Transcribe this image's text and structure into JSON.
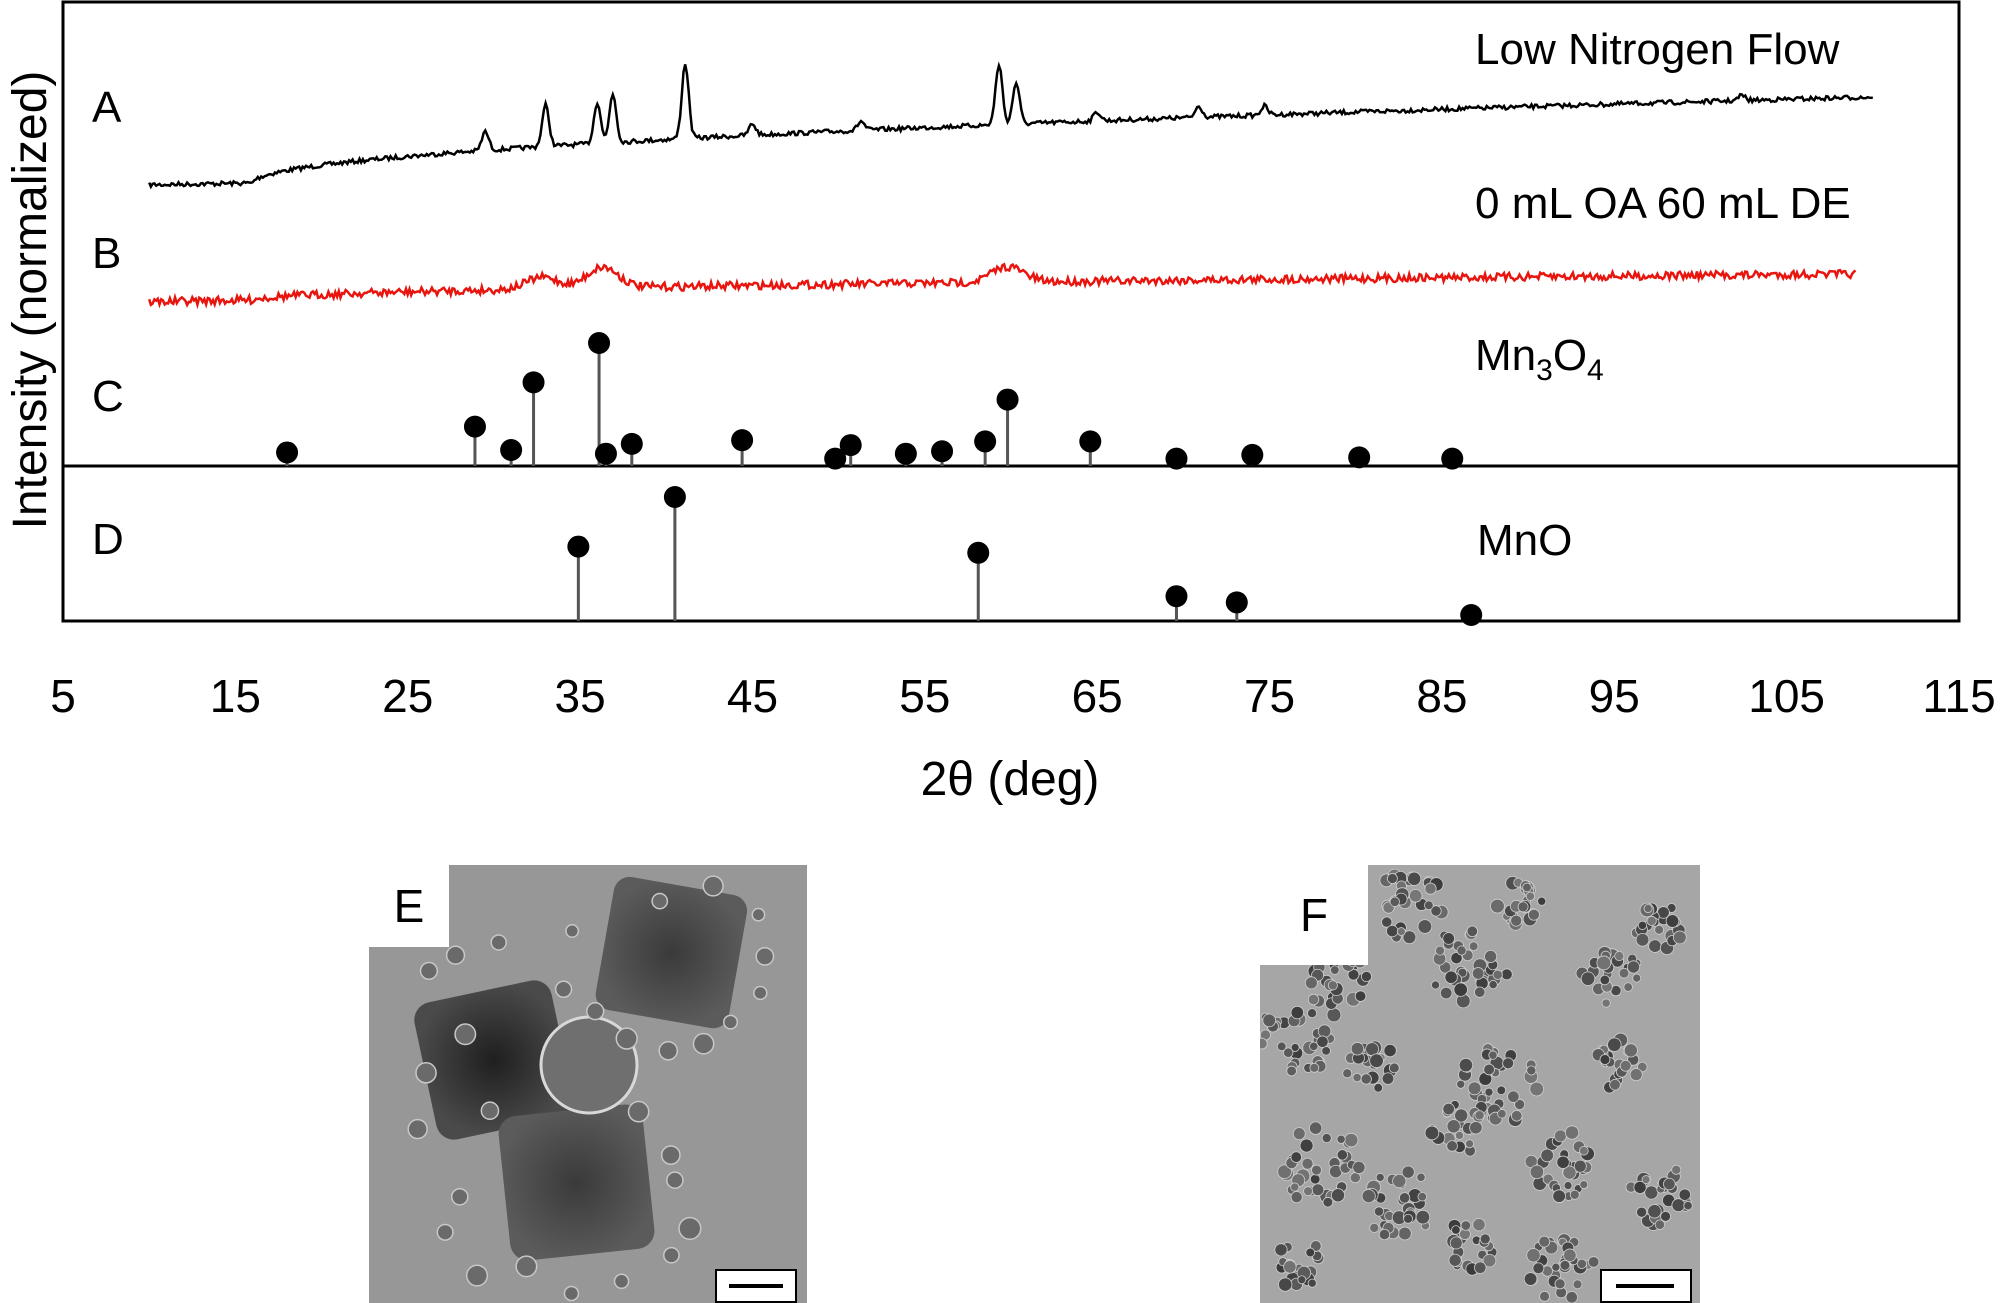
{
  "chart_data": {
    "type": "line",
    "x_label": "2θ (deg)",
    "y_label": "Intensity (normalized)",
    "x_range": [
      5,
      115
    ],
    "x_ticks": [
      5,
      15,
      25,
      35,
      45,
      55,
      65,
      75,
      85,
      95,
      105,
      115
    ],
    "y_ticks": "none",
    "grid": false,
    "series": [
      {
        "panel": "A",
        "name": "Low Nitrogen Flow",
        "style": "measured-xrd",
        "color": "#000000",
        "x_start": 10,
        "x_end": 110,
        "peaks": [
          {
            "x": 29.5,
            "rel": 0.25
          },
          {
            "x": 33.0,
            "rel": 0.55
          },
          {
            "x": 36.0,
            "rel": 0.55
          },
          {
            "x": 36.9,
            "rel": 0.65
          },
          {
            "x": 41.1,
            "rel": 1.0
          },
          {
            "x": 45.0,
            "rel": 0.15
          },
          {
            "x": 51.3,
            "rel": 0.12
          },
          {
            "x": 59.3,
            "rel": 0.8
          },
          {
            "x": 60.3,
            "rel": 0.55
          },
          {
            "x": 65.0,
            "rel": 0.12
          },
          {
            "x": 70.9,
            "rel": 0.15
          },
          {
            "x": 74.7,
            "rel": 0.12
          },
          {
            "x": 102.4,
            "rel": 0.07
          }
        ]
      },
      {
        "panel": "B",
        "name": "0 mL OA 60 mL DE",
        "style": "measured-xrd",
        "color": "#e8140e",
        "x_start": 10,
        "x_end": 109,
        "peaks": [
          {
            "x": 32.8,
            "rel": 0.45
          },
          {
            "x": 36.3,
            "rel": 0.8
          },
          {
            "x": 59.8,
            "rel": 0.6
          }
        ]
      },
      {
        "panel": "C",
        "name": "Mn3O4",
        "label_main": "Mn",
        "label_sub1": "3",
        "label_mid": "O",
        "label_sub2": "4",
        "style": "reference-sticks",
        "color": "#000000",
        "peaks": [
          {
            "x": 18.0,
            "rel": 0.11
          },
          {
            "x": 28.9,
            "rel": 0.32
          },
          {
            "x": 31.0,
            "rel": 0.13
          },
          {
            "x": 32.3,
            "rel": 0.68
          },
          {
            "x": 36.1,
            "rel": 1.0
          },
          {
            "x": 36.5,
            "rel": 0.1
          },
          {
            "x": 38.0,
            "rel": 0.18
          },
          {
            "x": 44.4,
            "rel": 0.21
          },
          {
            "x": 49.8,
            "rel": 0.06
          },
          {
            "x": 50.7,
            "rel": 0.17
          },
          {
            "x": 53.9,
            "rel": 0.1
          },
          {
            "x": 56.0,
            "rel": 0.12
          },
          {
            "x": 58.5,
            "rel": 0.2
          },
          {
            "x": 59.8,
            "rel": 0.54
          },
          {
            "x": 64.6,
            "rel": 0.2
          },
          {
            "x": 69.6,
            "rel": 0.06
          },
          {
            "x": 74.0,
            "rel": 0.09
          },
          {
            "x": 80.2,
            "rel": 0.07
          },
          {
            "x": 85.6,
            "rel": 0.06
          }
        ]
      },
      {
        "panel": "D",
        "name": "MnO",
        "style": "reference-sticks",
        "color": "#555555",
        "peaks": [
          {
            "x": 34.9,
            "rel": 0.6
          },
          {
            "x": 40.5,
            "rel": 1.0
          },
          {
            "x": 58.1,
            "rel": 0.55
          },
          {
            "x": 69.6,
            "rel": 0.2
          },
          {
            "x": 73.1,
            "rel": 0.15
          },
          {
            "x": 86.7,
            "rel": 0.04
          }
        ]
      }
    ]
  },
  "panel_letters": {
    "a": "A",
    "b": "B",
    "c": "C",
    "d": "D",
    "e": "E",
    "f": "F"
  }
}
